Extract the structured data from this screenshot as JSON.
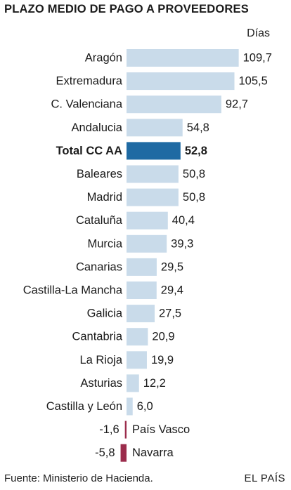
{
  "title": "PLAZO MEDIO DE PAGO A PROVEEDORES",
  "unit_label": "Días",
  "source": "Fuente: Ministerio de Hacienda.",
  "brand": "EL PAÍS",
  "colors": {
    "bar": "#c9dbea",
    "highlight": "#1f6aa3",
    "negative": "#9b2c4c",
    "text": "#1a1a1a"
  },
  "chart_data": {
    "type": "bar",
    "orientation": "horizontal",
    "title": "PLAZO MEDIO DE PAGO A PROVEEDORES",
    "unit": "Días",
    "categories": [
      "Aragón",
      "Extremadura",
      "C. Valenciana",
      "Andalucia",
      "Total CC AA",
      "Baleares",
      "Madrid",
      "Cataluña",
      "Murcia",
      "Canarias",
      "Castilla-La Mancha",
      "Galicia",
      "Cantabria",
      "La Rioja",
      "Asturias",
      "Castilla y León",
      "País Vasco",
      "Navarra"
    ],
    "values": [
      109.7,
      105.5,
      92.7,
      54.8,
      52.8,
      50.8,
      50.8,
      40.4,
      39.3,
      29.5,
      29.4,
      27.5,
      20.9,
      19.9,
      12.2,
      6.0,
      -1.6,
      -5.8
    ],
    "value_labels": [
      "109,7",
      "105,5",
      "92,7",
      "54,8",
      "52,8",
      "50,8",
      "50,8",
      "40,4",
      "39,3",
      "29,5",
      "29,4",
      "27,5",
      "20,9",
      "19,9",
      "12,2",
      "6,0",
      "-1,6",
      "-5,8"
    ],
    "highlight": "Total CC AA",
    "xlim": [
      -5.8,
      109.7
    ],
    "grid": false,
    "legend": "none"
  }
}
